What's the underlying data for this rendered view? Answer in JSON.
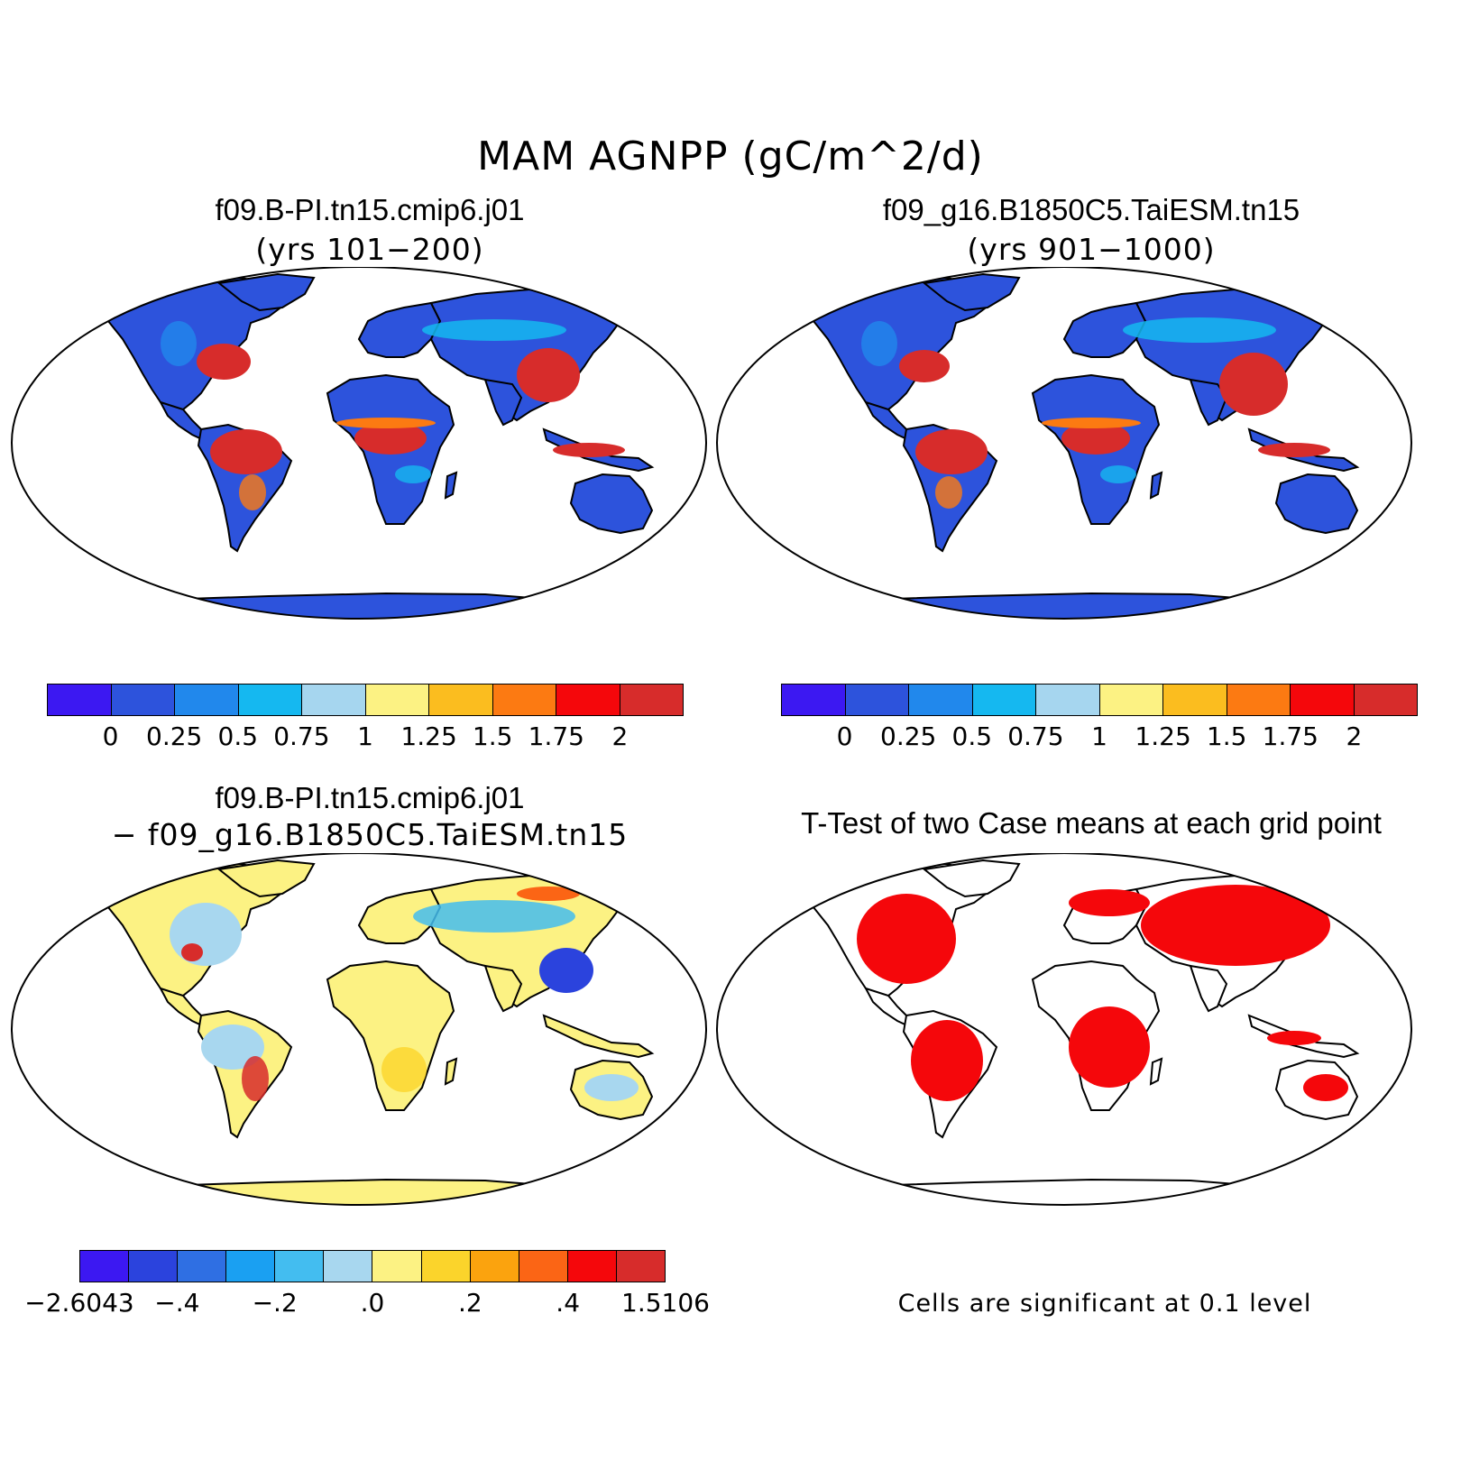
{
  "figure": {
    "title": "MAM AGNPP (gC/m^2/d)"
  },
  "panels": {
    "p1": {
      "title": "f09.B-PI.tn15.cmip6.j01",
      "subtitle": "(yrs 101−200)"
    },
    "p2": {
      "title": "f09_g16.B1850C5.TaiESM.tn15",
      "subtitle": "(yrs 901−1000)"
    },
    "p3": {
      "title": "f09.B-PI.tn15.cmip6.j01",
      "subtitle": "− f09_g16.B1850C5.TaiESM.tn15"
    },
    "p4": {
      "title": "T-Test of two Case means at each grid point",
      "note": "Cells are significant at 0.1 level"
    }
  },
  "colorbars": {
    "abs": {
      "colors": [
        "#3c18f2",
        "#2d53dc",
        "#2188ec",
        "#15b8f0",
        "#a6d6ef",
        "#fcf283",
        "#fbbd1f",
        "#fc7a12",
        "#f5070b",
        "#d72c2b"
      ],
      "ticks": [
        "0",
        "0.25",
        "0.5",
        "0.75",
        "1",
        "1.25",
        "1.5",
        "1.75",
        "2"
      ]
    },
    "diff": {
      "colors": [
        "#3c18f2",
        "#2b43dd",
        "#2f6fe3",
        "#1aa0f2",
        "#43bdf0",
        "#a8d7ef",
        "#fcf283",
        "#fbd42b",
        "#fba30e",
        "#fb6515",
        "#f5070b",
        "#d72c2b"
      ],
      "ticks": [
        "−2.6043",
        "−.4",
        "−.2",
        ".0",
        ".2",
        ".4",
        "1.5106"
      ]
    }
  },
  "map_colors": {
    "ocean": "#ffffff",
    "coast": "#000000",
    "sig_land": "#f5070b"
  }
}
